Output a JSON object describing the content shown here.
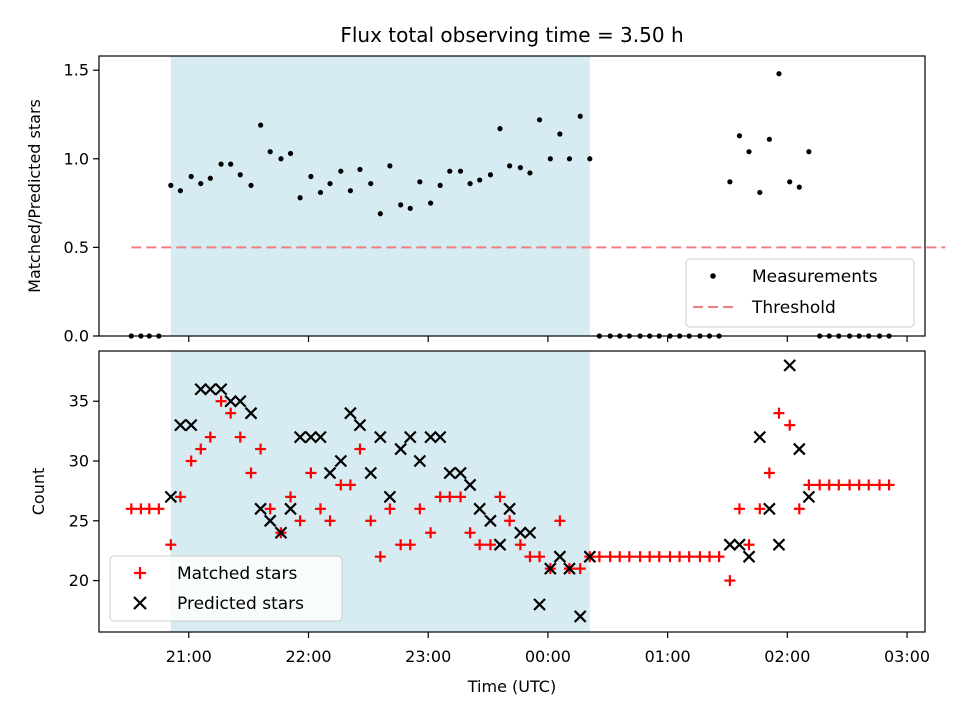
{
  "title": "Flux total observing time = 3.50 h",
  "xlabel": "Time (UTC)",
  "x_ticks": [
    "21:00",
    "22:00",
    "23:00",
    "00:00",
    "01:00",
    "02:00",
    "03:00"
  ],
  "x_ticks_hours": [
    21,
    22,
    23,
    24,
    25,
    26,
    27
  ],
  "x_range_hours": [
    20.25,
    27.15
  ],
  "observing_window_hours": [
    20.85,
    24.35
  ],
  "colors": {
    "shade": "#add8e6",
    "measurement": "#000000",
    "threshold": "#f08080",
    "matched": "#ff0000",
    "predicted": "#000000"
  },
  "chart_data": [
    {
      "type": "scatter",
      "ylabel": "Matched/Predicted stars",
      "ylim": [
        0,
        1.58
      ],
      "y_ticks": [
        "0.0",
        "0.5",
        "1.0",
        "1.5"
      ],
      "y_tick_values": [
        0,
        0.5,
        1.0,
        1.5
      ],
      "threshold": 0.5,
      "threshold_x_hours": [
        20.52,
        27.32
      ],
      "legend": {
        "placement": "lower-right",
        "entries": [
          "Measurements",
          "Threshold"
        ]
      },
      "series": [
        {
          "name": "Measurements",
          "x": [
            20.52,
            20.6,
            20.67,
            20.75,
            20.85,
            20.93,
            21.02,
            21.1,
            21.18,
            21.27,
            21.35,
            21.43,
            21.52,
            21.6,
            21.68,
            21.77,
            21.85,
            21.93,
            22.02,
            22.1,
            22.18,
            22.27,
            22.35,
            22.43,
            22.52,
            22.6,
            22.68,
            22.77,
            22.85,
            22.93,
            23.02,
            23.1,
            23.18,
            23.27,
            23.35,
            23.43,
            23.52,
            23.6,
            23.68,
            23.77,
            23.85,
            23.93,
            24.02,
            24.1,
            24.18,
            24.27,
            24.35,
            24.43,
            24.52,
            24.6,
            24.68,
            24.77,
            24.85,
            24.93,
            25.02,
            25.1,
            25.18,
            25.27,
            25.35,
            25.43,
            25.52,
            25.6,
            25.68,
            25.77,
            25.85,
            25.93,
            26.02,
            26.1,
            26.18,
            26.27,
            26.35,
            26.43,
            26.52,
            26.6,
            26.68,
            26.77,
            26.85
          ],
          "y": [
            0,
            0,
            0,
            0,
            0.85,
            0.82,
            0.9,
            0.86,
            0.89,
            0.97,
            0.97,
            0.91,
            0.85,
            1.19,
            1.04,
            1.0,
            1.03,
            0.78,
            0.9,
            0.81,
            0.86,
            0.93,
            0.82,
            0.94,
            0.86,
            0.69,
            0.96,
            0.74,
            0.72,
            0.87,
            0.75,
            0.85,
            0.93,
            0.93,
            0.86,
            0.88,
            0.91,
            1.17,
            0.96,
            0.95,
            0.92,
            1.22,
            1.0,
            1.14,
            1.0,
            1.24,
            1.0,
            0,
            0,
            0,
            0,
            0,
            0,
            0,
            0,
            0,
            0,
            0,
            0,
            0,
            0.87,
            1.13,
            1.04,
            0.81,
            1.11,
            1.48,
            0.87,
            0.84,
            1.04,
            0,
            0,
            0,
            0,
            0,
            0,
            0,
            0
          ]
        }
      ]
    },
    {
      "type": "scatter",
      "ylabel": "Count",
      "ylim": [
        15.7,
        39.2
      ],
      "y_ticks": [
        "20",
        "25",
        "30",
        "35"
      ],
      "y_tick_values": [
        20,
        25,
        30,
        35
      ],
      "legend": {
        "placement": "lower-left",
        "entries": [
          "Matched stars",
          "Predicted stars"
        ]
      },
      "series": [
        {
          "name": "Matched stars",
          "x": [
            20.52,
            20.6,
            20.67,
            20.75,
            20.85,
            20.93,
            21.02,
            21.1,
            21.18,
            21.27,
            21.35,
            21.43,
            21.52,
            21.6,
            21.68,
            21.77,
            21.85,
            21.93,
            22.02,
            22.1,
            22.18,
            22.27,
            22.35,
            22.43,
            22.52,
            22.6,
            22.68,
            22.77,
            22.85,
            22.93,
            23.02,
            23.1,
            23.18,
            23.27,
            23.35,
            23.43,
            23.52,
            23.6,
            23.68,
            23.77,
            23.85,
            23.93,
            24.02,
            24.1,
            24.18,
            24.27,
            24.35,
            24.43,
            24.52,
            24.6,
            24.68,
            24.77,
            24.85,
            24.93,
            25.02,
            25.1,
            25.18,
            25.27,
            25.35,
            25.43,
            25.52,
            25.6,
            25.68,
            25.77,
            25.85,
            25.93,
            26.02,
            26.1,
            26.18,
            26.27,
            26.35,
            26.43,
            26.52,
            26.6,
            26.68,
            26.77,
            26.85
          ],
          "y": [
            26,
            26,
            26,
            26,
            23,
            27,
            30,
            31,
            32,
            35,
            34,
            32,
            29,
            31,
            26,
            24,
            27,
            25,
            29,
            26,
            25,
            28,
            28,
            31,
            25,
            22,
            26,
            23,
            23,
            26,
            24,
            27,
            27,
            27,
            24,
            23,
            23,
            27,
            25,
            23,
            22,
            22,
            21,
            25,
            21,
            21,
            22,
            22,
            22,
            22,
            22,
            22,
            22,
            22,
            22,
            22,
            22,
            22,
            22,
            22,
            20,
            26,
            23,
            26,
            29,
            34,
            33,
            26,
            28,
            28,
            28,
            28,
            28,
            28,
            28,
            28,
            28
          ]
        },
        {
          "name": "Predicted stars",
          "x": [
            20.85,
            20.93,
            21.02,
            21.1,
            21.18,
            21.27,
            21.35,
            21.43,
            21.52,
            21.6,
            21.68,
            21.77,
            21.85,
            21.93,
            22.02,
            22.1,
            22.18,
            22.27,
            22.35,
            22.43,
            22.52,
            22.6,
            22.68,
            22.77,
            22.85,
            22.93,
            23.02,
            23.1,
            23.18,
            23.27,
            23.35,
            23.43,
            23.52,
            23.6,
            23.68,
            23.77,
            23.85,
            23.93,
            24.02,
            24.1,
            24.18,
            24.27,
            24.35,
            25.52,
            25.6,
            25.68,
            25.77,
            25.85,
            25.93,
            26.02,
            26.1,
            26.18
          ],
          "y": [
            27,
            33,
            33,
            36,
            36,
            36,
            35,
            35,
            34,
            26,
            25,
            24,
            26,
            32,
            32,
            32,
            29,
            30,
            34,
            33,
            29,
            32,
            27,
            31,
            32,
            30,
            32,
            32,
            29,
            29,
            28,
            26,
            25,
            23,
            26,
            24,
            24,
            18,
            21,
            22,
            21,
            17,
            22,
            23,
            23,
            22,
            32,
            26,
            23,
            38,
            31,
            27
          ]
        }
      ]
    }
  ]
}
